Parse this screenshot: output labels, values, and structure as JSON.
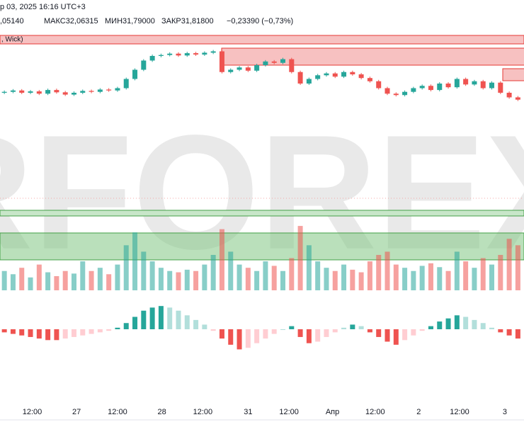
{
  "chart_data": {
    "type": "candlestick",
    "header_date": "р 03, 2025 16:16 UTC+3",
    "header_open": ",05140",
    "header_high": "МАКС32,06315",
    "header_low": "МИН31,79000",
    "header_close": "ЗАКР31,81800",
    "header_change": "−0,23390 (−0,73%)",
    "zone_label": ", Wick)",
    "watermark": "RFOREX",
    "up_color": "#26a69a",
    "down_color": "#ef5350",
    "ylim": [
      31.0,
      33.0
    ],
    "xlim": [
      -0.5,
      59.7
    ],
    "open": [
      31.6,
      31.62,
      31.65,
      31.6,
      31.63,
      31.58,
      31.66,
      31.61,
      31.56,
      31.6,
      31.64,
      31.62,
      31.67,
      31.65,
      31.7,
      31.9,
      32.1,
      32.3,
      32.4,
      32.42,
      32.45,
      32.41,
      32.46,
      32.43,
      32.47,
      32.5,
      32.05,
      32.1,
      32.15,
      32.08,
      32.2,
      32.28,
      32.25,
      32.33,
      32.05,
      31.8,
      31.9,
      31.98,
      32.02,
      31.95,
      32.05,
      32.0,
      31.92,
      31.85,
      31.7,
      31.58,
      31.55,
      31.62,
      31.7,
      31.75,
      31.66,
      31.8,
      31.72,
      31.9,
      31.78,
      31.85,
      31.7,
      31.82,
      31.6,
      31.5
    ],
    "high": [
      31.65,
      31.68,
      31.68,
      31.66,
      31.66,
      31.69,
      31.69,
      31.64,
      31.63,
      31.67,
      31.67,
      31.7,
      31.7,
      31.73,
      31.93,
      32.13,
      32.33,
      32.43,
      32.45,
      32.48,
      32.48,
      32.49,
      32.49,
      32.5,
      32.53,
      32.53,
      32.13,
      32.18,
      32.18,
      32.23,
      32.31,
      32.31,
      32.36,
      32.36,
      32.08,
      31.93,
      32.01,
      32.05,
      32.05,
      32.08,
      32.08,
      32.03,
      31.95,
      31.88,
      31.73,
      31.61,
      31.65,
      31.73,
      31.78,
      31.78,
      31.83,
      31.83,
      31.93,
      31.93,
      31.88,
      31.88,
      31.85,
      31.85,
      31.63,
      31.53
    ],
    "low": [
      31.57,
      31.59,
      31.57,
      31.57,
      31.55,
      31.55,
      31.58,
      31.53,
      31.53,
      31.57,
      31.59,
      31.59,
      31.62,
      31.62,
      31.67,
      31.87,
      32.07,
      32.27,
      32.37,
      32.39,
      32.38,
      32.38,
      32.4,
      32.4,
      32.44,
      32.02,
      32.02,
      32.07,
      32.05,
      32.05,
      32.17,
      32.22,
      32.22,
      32.02,
      31.77,
      31.77,
      31.87,
      31.95,
      31.92,
      31.92,
      31.97,
      31.89,
      31.82,
      31.67,
      31.55,
      31.52,
      31.52,
      31.59,
      31.67,
      31.63,
      31.63,
      31.69,
      31.69,
      31.75,
      31.75,
      31.67,
      31.67,
      31.57,
      31.47,
      31.42
    ],
    "close": [
      31.62,
      31.65,
      31.6,
      31.63,
      31.58,
      31.66,
      31.61,
      31.56,
      31.6,
      31.64,
      31.62,
      31.67,
      31.65,
      31.7,
      31.9,
      32.1,
      32.3,
      32.4,
      32.42,
      32.45,
      32.41,
      32.46,
      32.43,
      32.47,
      32.5,
      32.05,
      32.1,
      32.15,
      32.08,
      32.2,
      32.28,
      32.25,
      32.33,
      32.05,
      31.8,
      31.9,
      31.98,
      32.02,
      31.95,
      32.05,
      32.0,
      31.92,
      31.85,
      31.7,
      31.58,
      31.55,
      31.62,
      31.7,
      31.75,
      31.66,
      31.8,
      31.72,
      31.9,
      31.78,
      31.85,
      31.7,
      31.82,
      31.6,
      31.5,
      31.45
    ],
    "volume": [
      30,
      25,
      35,
      20,
      40,
      28,
      22,
      30,
      26,
      45,
      30,
      35,
      25,
      40,
      70,
      90,
      60,
      45,
      35,
      30,
      28,
      32,
      30,
      40,
      55,
      95,
      60,
      40,
      35,
      30,
      45,
      38,
      30,
      50,
      100,
      70,
      45,
      35,
      30,
      40,
      32,
      28,
      45,
      55,
      60,
      40,
      35,
      30,
      38,
      42,
      36,
      30,
      60,
      45,
      35,
      50,
      40,
      55,
      80,
      70
    ],
    "volume_lim": [
      0,
      110
    ],
    "oscillator": [
      -2,
      -3,
      -4,
      -5,
      -6,
      -7,
      -7,
      -6,
      -5,
      -4,
      -3,
      -2,
      -1,
      1,
      4,
      8,
      12,
      14,
      15,
      14,
      12,
      9,
      6,
      3,
      -1,
      -6,
      -10,
      -13,
      -12,
      -9,
      -6,
      -3,
      0,
      2,
      -5,
      -9,
      -8,
      -5,
      -2,
      1,
      3,
      2,
      -2,
      -5,
      -8,
      -10,
      -7,
      -4,
      -1,
      2,
      5,
      7,
      9,
      8,
      6,
      4,
      1,
      -2,
      -4,
      -6
    ],
    "oscillator_lim": [
      -16,
      16
    ],
    "xticks": [
      {
        "value": 3.2,
        "label": "12:00"
      },
      {
        "value": 8.3,
        "label": "27"
      },
      {
        "value": 13.0,
        "label": "12:00"
      },
      {
        "value": 18.1,
        "label": "28"
      },
      {
        "value": 22.8,
        "label": "12:00"
      },
      {
        "value": 28.0,
        "label": "31"
      },
      {
        "value": 32.7,
        "label": "12:00"
      },
      {
        "value": 37.7,
        "label": "Апр"
      },
      {
        "value": 42.6,
        "label": "12:00"
      },
      {
        "value": 47.6,
        "label": "2"
      },
      {
        "value": 52.3,
        "label": "12:00"
      },
      {
        "value": 57.5,
        "label": "3"
      }
    ]
  }
}
